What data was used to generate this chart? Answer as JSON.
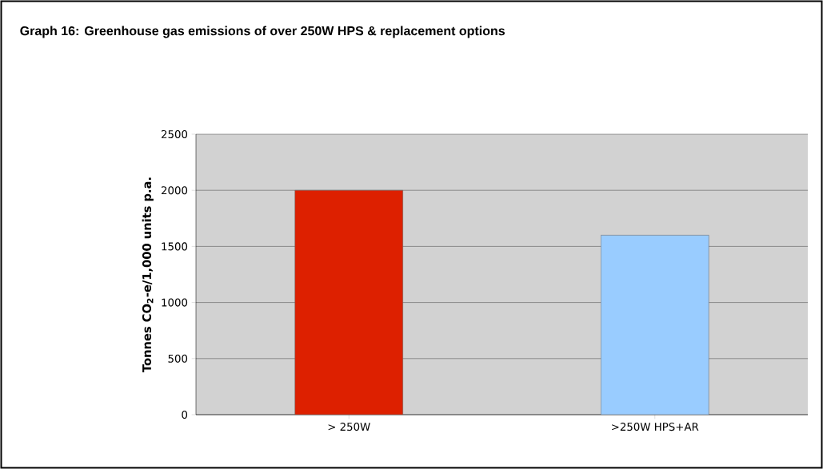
{
  "chart_data": {
    "type": "bar",
    "title": "Graph 16: Greenhouse gas emissions of over 250W HPS & replacement options",
    "ylabel": "Tonnes CO$_{2}$-e/1,000 units p.a.",
    "categories": [
      "> 250W",
      ">250W HPS+AR"
    ],
    "values": [
      2000,
      1600
    ],
    "colors": [
      "#dd2000",
      "#99ccff"
    ],
    "ylim": [
      0,
      2500
    ],
    "yticks": [
      0,
      500,
      1000,
      1500,
      2000,
      2500
    ],
    "grid": "y"
  }
}
